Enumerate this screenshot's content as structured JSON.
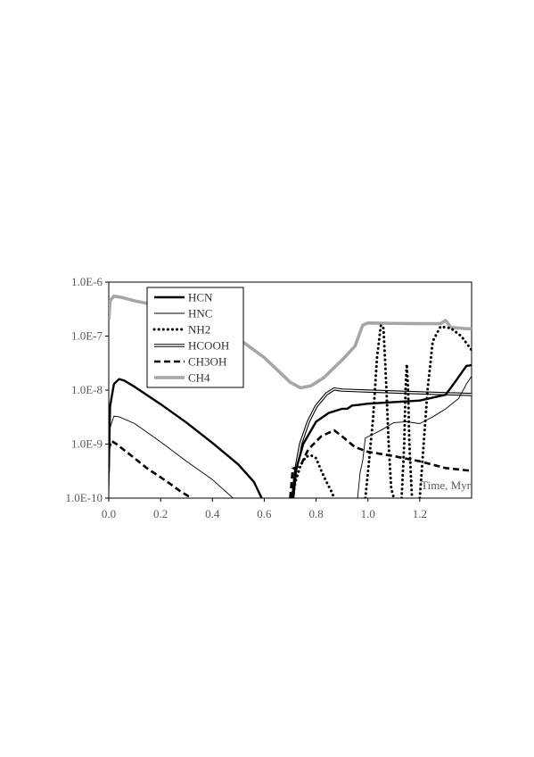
{
  "chart_data": {
    "type": "line",
    "title": "",
    "xlabel": "Time, Myr",
    "ylabel": "",
    "xlim": [
      0,
      1.4
    ],
    "ylim": [
      1e-10,
      1e-06
    ],
    "yscale": "log",
    "grid": false,
    "legend_position": "top-left",
    "x_ticks": [
      {
        "value": 0.0,
        "label": "0.0"
      },
      {
        "value": 0.2,
        "label": "0.2"
      },
      {
        "value": 0.4,
        "label": "0.4"
      },
      {
        "value": 0.6,
        "label": "0.6"
      },
      {
        "value": 0.8,
        "label": "0.8"
      },
      {
        "value": 1.0,
        "label": "1.0"
      },
      {
        "value": 1.2,
        "label": "1.2"
      }
    ],
    "y_ticks": [
      {
        "value": 1e-10,
        "label": "1.0E-10"
      },
      {
        "value": 1e-09,
        "label": "1.0E-9"
      },
      {
        "value": 1e-08,
        "label": "1.0E-8"
      },
      {
        "value": 1e-07,
        "label": "1.0E-7"
      },
      {
        "value": 1e-06,
        "label": "1.0E-6"
      }
    ],
    "series": [
      {
        "name": "HCN",
        "color": "#000000",
        "style": "thick-solid",
        "segments": [
          [
            [
              0.0,
              3e-10
            ],
            [
              0.005,
              5e-09
            ],
            [
              0.02,
              1.3e-08
            ],
            [
              0.04,
              1.6e-08
            ],
            [
              0.06,
              1.5e-08
            ],
            [
              0.1,
              1.15e-08
            ],
            [
              0.2,
              5.5e-09
            ],
            [
              0.3,
              2.5e-09
            ],
            [
              0.4,
              1.05e-09
            ],
            [
              0.5,
              4.2e-10
            ],
            [
              0.56,
              2e-10
            ],
            [
              0.59,
              1e-10
            ]
          ],
          [
            [
              0.71,
              1e-10
            ],
            [
              0.72,
              3e-10
            ],
            [
              0.75,
              1e-09
            ],
            [
              0.8,
              2.6e-09
            ],
            [
              0.85,
              3.8e-09
            ],
            [
              0.9,
              4.5e-09
            ],
            [
              0.92,
              4.5e-09
            ],
            [
              0.94,
              5.2e-09
            ],
            [
              0.96,
              5.3e-09
            ],
            [
              1.0,
              5.6e-09
            ],
            [
              1.1,
              6e-09
            ],
            [
              1.2,
              6.4e-09
            ],
            [
              1.3,
              8.2e-09
            ],
            [
              1.34,
              1.5e-08
            ],
            [
              1.38,
              2.8e-08
            ],
            [
              1.4,
              2.9e-08
            ]
          ]
        ]
      },
      {
        "name": "HNC",
        "color": "#000000",
        "style": "thin-solid",
        "segments": [
          [
            [
              0.0,
              1e-10
            ],
            [
              0.005,
              2e-09
            ],
            [
              0.02,
              3.3e-09
            ],
            [
              0.04,
              3.2e-09
            ],
            [
              0.1,
              2.4e-09
            ],
            [
              0.2,
              1.1e-09
            ],
            [
              0.3,
              4.8e-10
            ],
            [
              0.4,
              2.2e-10
            ],
            [
              0.47,
              1.1e-10
            ],
            [
              0.48,
              1e-10
            ]
          ],
          [
            [
              0.96,
              1e-10
            ],
            [
              0.97,
              3e-10
            ],
            [
              0.98,
              5e-10
            ],
            [
              0.99,
              1.3e-09
            ],
            [
              1.05,
              1.8e-09
            ],
            [
              1.1,
              2.5e-09
            ],
            [
              1.15,
              2.6e-09
            ],
            [
              1.2,
              2.4e-09
            ],
            [
              1.25,
              3.2e-09
            ],
            [
              1.3,
              4.5e-09
            ],
            [
              1.35,
              7e-09
            ],
            [
              1.38,
              1.3e-08
            ],
            [
              1.4,
              1.8e-08
            ]
          ]
        ]
      },
      {
        "name": "NH2",
        "color": "#000000",
        "style": "dotted",
        "segments": [
          [
            [
              0.71,
              1e-10
            ],
            [
              0.72,
              2e-10
            ],
            [
              0.74,
              4e-10
            ],
            [
              0.76,
              5.8e-10
            ],
            [
              0.78,
              6.2e-10
            ],
            [
              0.8,
              5.5e-10
            ],
            [
              0.82,
              3.2e-10
            ],
            [
              0.84,
              2e-10
            ],
            [
              0.86,
              1.3e-10
            ],
            [
              0.87,
              1e-10
            ]
          ],
          [
            [
              0.99,
              1e-10
            ],
            [
              1.0,
              3e-10
            ],
            [
              1.02,
              3e-09
            ],
            [
              1.035,
              4e-08
            ],
            [
              1.05,
              1.6e-07
            ],
            [
              1.06,
              1.4e-07
            ],
            [
              1.07,
              1.5e-08
            ],
            [
              1.08,
              1e-09
            ],
            [
              1.09,
              1.5e-10
            ],
            [
              1.1,
              1e-10
            ]
          ],
          [
            [
              1.13,
              1e-10
            ],
            [
              1.14,
              1e-09
            ],
            [
              1.145,
              1e-08
            ],
            [
              1.15,
              3e-08
            ],
            [
              1.155,
              1e-08
            ],
            [
              1.16,
              1e-09
            ],
            [
              1.17,
              1e-10
            ]
          ],
          [
            [
              1.2,
              1e-10
            ],
            [
              1.215,
              1e-09
            ],
            [
              1.23,
              1e-08
            ],
            [
              1.25,
              8e-08
            ],
            [
              1.28,
              1.5e-07
            ],
            [
              1.32,
              1.4e-07
            ],
            [
              1.36,
              1e-07
            ],
            [
              1.4,
              5.5e-08
            ]
          ]
        ]
      },
      {
        "name": "HCOOH",
        "color": "#000000",
        "style": "double",
        "segments": [
          [
            [
              0.71,
              1e-10
            ],
            [
              0.72,
              3e-10
            ],
            [
              0.74,
              1e-09
            ],
            [
              0.77,
              2.6e-09
            ],
            [
              0.8,
              5e-09
            ],
            [
              0.84,
              8.5e-09
            ],
            [
              0.87,
              1.05e-08
            ],
            [
              0.9,
              1e-08
            ],
            [
              1.0,
              9.6e-09
            ],
            [
              1.2,
              8.9e-09
            ],
            [
              1.4,
              8.3e-09
            ]
          ]
        ]
      },
      {
        "name": "CH3OH",
        "color": "#000000",
        "style": "dashed",
        "segments": [
          [
            [
              0.0,
              8e-10
            ],
            [
              0.01,
              1.15e-09
            ],
            [
              0.03,
              1e-09
            ],
            [
              0.08,
              6.5e-10
            ],
            [
              0.15,
              3.5e-10
            ],
            [
              0.22,
              2.1e-10
            ],
            [
              0.28,
              1.3e-10
            ],
            [
              0.32,
              1e-10
            ]
          ],
          [
            [
              0.7,
              1e-10
            ],
            [
              0.71,
              3.5e-10
            ],
            [
              0.74,
              4e-10
            ],
            [
              0.77,
              8e-10
            ],
            [
              0.82,
              1.4e-09
            ],
            [
              0.87,
              1.8e-09
            ],
            [
              0.9,
              1.4e-09
            ],
            [
              0.95,
              8.8e-10
            ],
            [
              1.0,
              7.2e-10
            ],
            [
              1.1,
              6e-10
            ],
            [
              1.2,
              4.8e-10
            ],
            [
              1.3,
              3.6e-10
            ],
            [
              1.4,
              3.2e-10
            ]
          ]
        ]
      },
      {
        "name": "CH4",
        "color": "#a6a6a6",
        "style": "thick-gray",
        "segments": [
          [
            [
              0.0,
              2e-07
            ],
            [
              0.005,
              4.5e-07
            ],
            [
              0.02,
              5.5e-07
            ],
            [
              0.05,
              5.2e-07
            ],
            [
              0.1,
              4.5e-07
            ],
            [
              0.2,
              3.6e-07
            ],
            [
              0.3,
              2.9e-07
            ],
            [
              0.4,
              1.9e-07
            ],
            [
              0.5,
              9e-08
            ],
            [
              0.6,
              4e-08
            ],
            [
              0.7,
              1.4e-08
            ],
            [
              0.74,
              1.1e-08
            ],
            [
              0.78,
              1.2e-08
            ],
            [
              0.83,
              1.7e-08
            ],
            [
              0.9,
              3.6e-08
            ],
            [
              0.95,
              6.5e-08
            ],
            [
              0.98,
              1.6e-07
            ],
            [
              1.0,
              1.75e-07
            ],
            [
              1.1,
              1.72e-07
            ],
            [
              1.2,
              1.7e-07
            ],
            [
              1.28,
              1.7e-07
            ],
            [
              1.3,
              1.95e-07
            ],
            [
              1.32,
              1.45e-07
            ],
            [
              1.4,
              1.35e-07
            ]
          ]
        ]
      }
    ]
  }
}
